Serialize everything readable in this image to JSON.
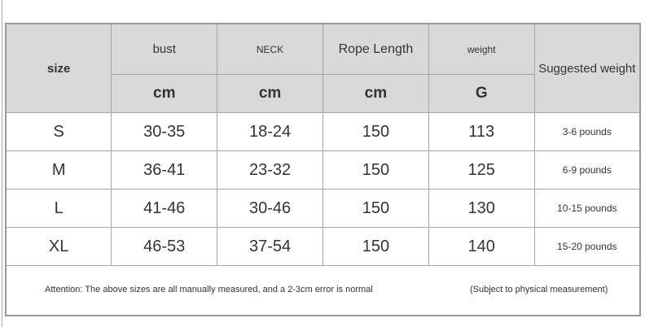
{
  "header": {
    "size": "size",
    "columns": [
      {
        "label": "bust",
        "unit": "cm"
      },
      {
        "label": "NECK",
        "unit": "cm"
      },
      {
        "label": "Rope Length",
        "unit": "cm"
      },
      {
        "label": "weight",
        "unit": "G"
      }
    ],
    "suggested": "Suggested weight"
  },
  "rows": [
    {
      "size": "S",
      "bust": "30-35",
      "neck": "18-24",
      "rope": "150",
      "weight": "113",
      "suggested": "3-6 pounds"
    },
    {
      "size": "M",
      "bust": "36-41",
      "neck": "23-32",
      "rope": "150",
      "weight": "125",
      "suggested": "6-9 pounds"
    },
    {
      "size": "L",
      "bust": "41-46",
      "neck": "30-46",
      "rope": "150",
      "weight": "130",
      "suggested": "10-15 pounds"
    },
    {
      "size": "XL",
      "bust": "46-53",
      "neck": "37-54",
      "rope": "150",
      "weight": "140",
      "suggested": "15-20 pounds"
    }
  ],
  "footer": {
    "attention": "Attention: The above sizes are all manually measured, and a 2-3cm error is normal",
    "note": "(Subject to physical measurement)"
  }
}
